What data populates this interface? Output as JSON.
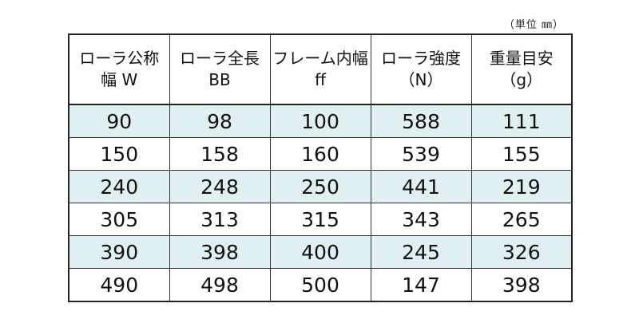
{
  "unit_note": "（単位 ㎜）",
  "table": {
    "headers": [
      {
        "line1": "ローラ公称",
        "line2": "幅 W"
      },
      {
        "line1": "ローラ全長",
        "line2": "BB"
      },
      {
        "line1": "フレーム内幅",
        "line2": "ff"
      },
      {
        "line1": "ローラ強度",
        "line2": "（N）"
      },
      {
        "line1": "重量目安",
        "line2": "（g）"
      }
    ],
    "rows": [
      [
        "90",
        "98",
        "100",
        "588",
        "111"
      ],
      [
        "150",
        "158",
        "160",
        "539",
        "155"
      ],
      [
        "240",
        "248",
        "250",
        "441",
        "219"
      ],
      [
        "305",
        "313",
        "315",
        "343",
        "265"
      ],
      [
        "390",
        "398",
        "400",
        "245",
        "326"
      ],
      [
        "490",
        "498",
        "500",
        "147",
        "398"
      ]
    ],
    "stripe_color": "#e0f0f2"
  }
}
